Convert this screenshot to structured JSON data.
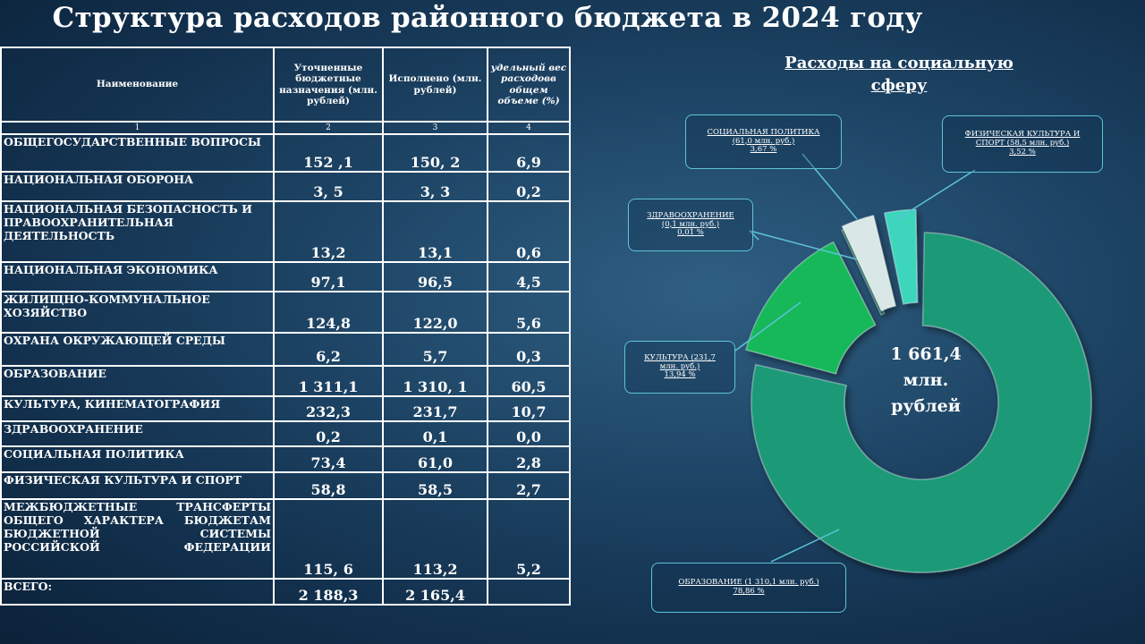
{
  "title": "Структура расходов районного бюджета в 2024 году",
  "table": {
    "headers": [
      "Наименование",
      "Уточненные бюджетные назначения (млн. рублей)",
      "Исполнено (млн. рублей)",
      "удельный вес расходов в общем объеме (%)"
    ],
    "header_italic_label": "удельный вес расходовв общем объеме (%)",
    "col_numbers": [
      "1",
      "2",
      "3",
      "4"
    ],
    "rows": [
      {
        "name": "ОБЩЕГОСУДАРСТВЕННЫЕ ВОПРОСЫ",
        "planned": "152 ,1",
        "executed": "150, 2",
        "share": "6,9"
      },
      {
        "name": "НАЦИОНАЛЬНАЯ ОБОРОНА",
        "planned": "3, 5",
        "executed": "3, 3",
        "share": "0,2"
      },
      {
        "name": "НАЦИОНАЛЬНАЯ БЕЗОПАСНОСТЬ И ПРАВООХРАНИТЕЛЬНАЯ ДЕЯТЕЛЬНОСТЬ",
        "planned": "13,2",
        "executed": "13,1",
        "share": "0,6"
      },
      {
        "name": "НАЦИОНАЛЬНАЯ ЭКОНОМИКА",
        "planned": "97,1",
        "executed": "96,5",
        "share": "4,5"
      },
      {
        "name": "ЖИЛИЩНО-КОММУНАЛЬНОЕ ХОЗЯЙСТВО",
        "planned": "124,8",
        "executed": "122,0",
        "share": "5,6"
      },
      {
        "name": "ОХРАНА ОКРУЖАЮЩЕЙ СРЕДЫ",
        "planned": "6,2",
        "executed": "5,7",
        "share": "0,3"
      },
      {
        "name": "ОБРАЗОВАНИЕ",
        "planned": "1 311,1",
        "executed": "1 310, 1",
        "share": "60,5"
      },
      {
        "name": "КУЛЬТУРА, КИНЕМАТОГРАФИЯ",
        "planned": "232,3",
        "executed": "231,7",
        "share": "10,7"
      },
      {
        "name": "ЗДРАВООХРАНЕНИЕ",
        "planned": "0,2",
        "executed": "0,1",
        "share": "0,0"
      },
      {
        "name": "СОЦИАЛЬНАЯ ПОЛИТИКА",
        "planned": "73,4",
        "executed": "61,0",
        "share": "2,8"
      },
      {
        "name": "ФИЗИЧЕСКАЯ КУЛЬТУРА И СПОРТ",
        "planned": "58,8",
        "executed": "58,5",
        "share": "2,7"
      },
      {
        "name": "МЕЖБЮДЖЕТНЫЕ ТРАНСФЕРТЫ ОБЩЕГО ХАРАКТЕРА БЮДЖЕТАМ БЮДЖЕТНОЙ СИСТЕМЫ РОССИЙСКОЙ ФЕДЕРАЦИИ",
        "planned": "115, 6",
        "executed": "113,2",
        "share": "5,2"
      },
      {
        "name": "ВСЕГО:",
        "planned": "2 188,3",
        "executed": "2 165,4",
        "share": ""
      }
    ]
  },
  "chart_data": {
    "type": "pie",
    "title": "Расходы на социальную сферу",
    "center_label": [
      "1 661,4",
      "млн.",
      "рублей"
    ],
    "slices": [
      {
        "name": "ОБРАЗОВАНИЕ",
        "value": 1310.1,
        "percent": 78.86,
        "label_lines": [
          "ОБРАЗОВАНИЕ (1 310,1 млн. руб.)",
          "78,86 %"
        ],
        "color": "#1f9a78"
      },
      {
        "name": "КУЛЬТУРА",
        "value": 231.7,
        "percent": 13.94,
        "label_lines": [
          "КУЛЬТУРА (231,7",
          "млн. руб.)",
          "13,94 %"
        ],
        "color": "#19b85a"
      },
      {
        "name": "ЗДРАВООХРАНЕНИЕ",
        "value": 0.1,
        "percent": 0.01,
        "label_lines": [
          "ЗДРАВООХРАНЕНИЕ",
          "(0,1 млн. руб.)",
          "0,01 %"
        ],
        "color": "#1a6f5e"
      },
      {
        "name": "СОЦИАЛЬНАЯ ПОЛИТИКА",
        "value": 61.0,
        "percent": 3.67,
        "label_lines": [
          "СОЦИАЛЬНАЯ ПОЛИТИКА",
          "(61,0 млн. руб.)",
          "3,67 %"
        ],
        "color": "#d9e8e6"
      },
      {
        "name": "ФИЗИЧЕСКАЯ КУЛЬТУРА И СПОРТ",
        "value": 58.5,
        "percent": 3.52,
        "label_lines": [
          "ФИЗИЧЕСКАЯ КУЛЬТУРА И",
          "СПОРТ (58,5 млн. руб.)",
          "3,52 %"
        ],
        "color": "#3cd6bd"
      }
    ]
  }
}
